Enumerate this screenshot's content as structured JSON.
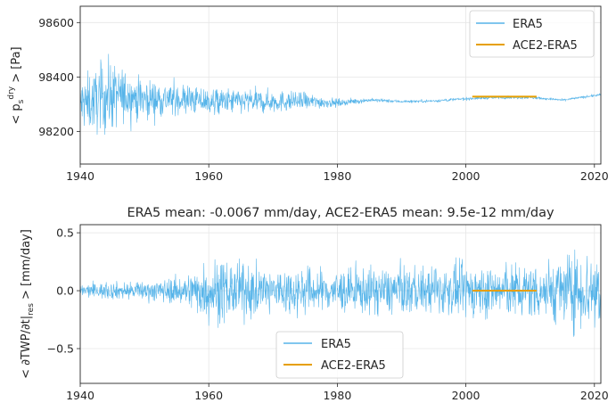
{
  "chart_data": [
    {
      "type": "line",
      "title": "",
      "xlabel": "",
      "ylabel_parts": {
        "prefix": "< p",
        "sub": "s",
        "sup": "dry",
        "suffix": " > [Pa]"
      },
      "xlim": [
        1940,
        2021
      ],
      "ylim": [
        98080,
        98660
      ],
      "xticks": [
        1940,
        1960,
        1980,
        2000,
        2020
      ],
      "yticks": [
        98200,
        98400,
        98600
      ],
      "grid": true,
      "legend_position": "top-right",
      "series": [
        {
          "name": "ERA5",
          "color": "#56b4e9",
          "x": [
            1940,
            1942,
            1944,
            1946,
            1948,
            1950,
            1955,
            1960,
            1965,
            1970,
            1975,
            1980,
            1985,
            1990,
            1995,
            2000,
            2005,
            2010,
            2015,
            2021
          ],
          "y": [
            98300,
            98310,
            98330,
            98330,
            98330,
            98320,
            98320,
            98310,
            98310,
            98310,
            98310,
            98305,
            98315,
            98310,
            98312,
            98320,
            98325,
            98325,
            98315,
            98335
          ],
          "noise_amplitude": [
            110,
            120,
            150,
            120,
            90,
            80,
            65,
            55,
            50,
            45,
            35,
            15,
            8,
            6,
            6,
            6,
            6,
            6,
            5,
            5
          ]
        },
        {
          "name": "ACE2-ERA5",
          "color": "#e69f00",
          "x": [
            2001,
            2011
          ],
          "y": [
            98328,
            98328
          ]
        }
      ]
    },
    {
      "type": "line",
      "title": "ERA5 mean: -0.0067 mm/day, ACE2-ERA5 mean: 9.5e-12 mm/day",
      "xlabel": "",
      "ylabel_parts": {
        "prefix": "< ∂TWP/∂t|",
        "sub": "res",
        "suffix": " > [mm/day]"
      },
      "xlim": [
        1940,
        2021
      ],
      "ylim": [
        -0.8,
        0.57
      ],
      "xticks": [
        1940,
        1960,
        1980,
        2000,
        2020
      ],
      "yticks": [
        -0.5,
        0.0,
        0.5
      ],
      "ytick_labels": [
        "−0.5",
        "0.0",
        "0.5"
      ],
      "grid": true,
      "legend_position": "bottom-center",
      "series": [
        {
          "name": "ERA5",
          "color": "#56b4e9",
          "x": [
            1940,
            1945,
            1950,
            1955,
            1958,
            1960,
            1962,
            1965,
            1970,
            1975,
            1980,
            1985,
            1990,
            1995,
            2000,
            2005,
            2010,
            2015,
            2021
          ],
          "y": [
            0.0,
            0.0,
            0.0,
            0.0,
            0.0,
            0.0,
            0.0,
            0.0,
            0.0,
            0.0,
            0.0,
            0.0,
            0.0,
            0.0,
            0.0,
            0.0,
            0.0,
            0.0,
            0.0
          ],
          "noise_amplitude": [
            0.06,
            0.08,
            0.09,
            0.12,
            0.2,
            0.3,
            0.3,
            0.25,
            0.22,
            0.22,
            0.2,
            0.22,
            0.22,
            0.22,
            0.24,
            0.25,
            0.26,
            0.32,
            0.42
          ]
        },
        {
          "name": "ACE2-ERA5",
          "color": "#e69f00",
          "x": [
            2001,
            2011
          ],
          "y": [
            0.0,
            0.0
          ]
        }
      ]
    }
  ]
}
